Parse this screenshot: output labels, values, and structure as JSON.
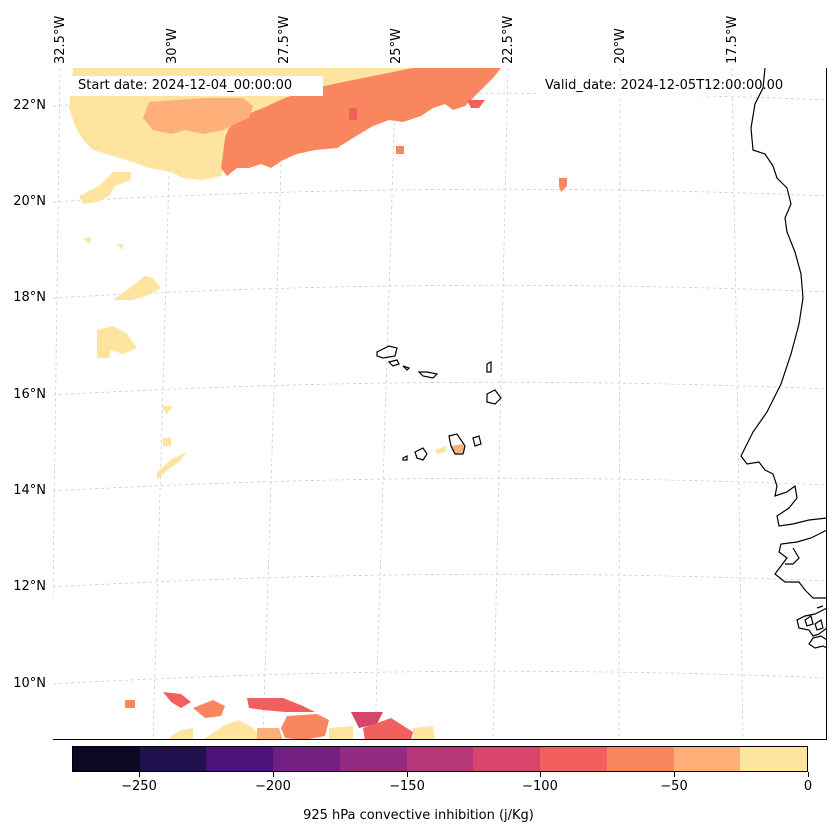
{
  "map": {
    "start_date": "Start date: 2024-12-04_00:00:00",
    "valid_date": "Valid_date: 2024-12-05T12:00:00.00",
    "longitude_labels": [
      "32.5°W",
      "30°W",
      "27.5°W",
      "25°W",
      "22.5°W",
      "20°W",
      "17.5°W"
    ],
    "latitude_labels": [
      "22°N",
      "20°N",
      "18°N",
      "16°N",
      "14°N",
      "12°N",
      "10°N"
    ],
    "region": "Cape Verde Islands and West African coast",
    "variable": "925 hPa convective inhibition"
  },
  "colorbar": {
    "label": "925 hPa convective inhibition (j/Kg)",
    "ticks": [
      "−250",
      "−200",
      "−150",
      "−100",
      "−50",
      "0"
    ],
    "tick_values": [
      -250,
      -200,
      -150,
      -100,
      -50,
      0
    ],
    "range": [
      -275,
      0
    ],
    "colors": [
      "#0b0924",
      "#221150",
      "#4d117b",
      "#721f81",
      "#932b80",
      "#b73779",
      "#d8456c",
      "#f1605d",
      "#fa8660",
      "#feb078",
      "#fee49e"
    ]
  }
}
